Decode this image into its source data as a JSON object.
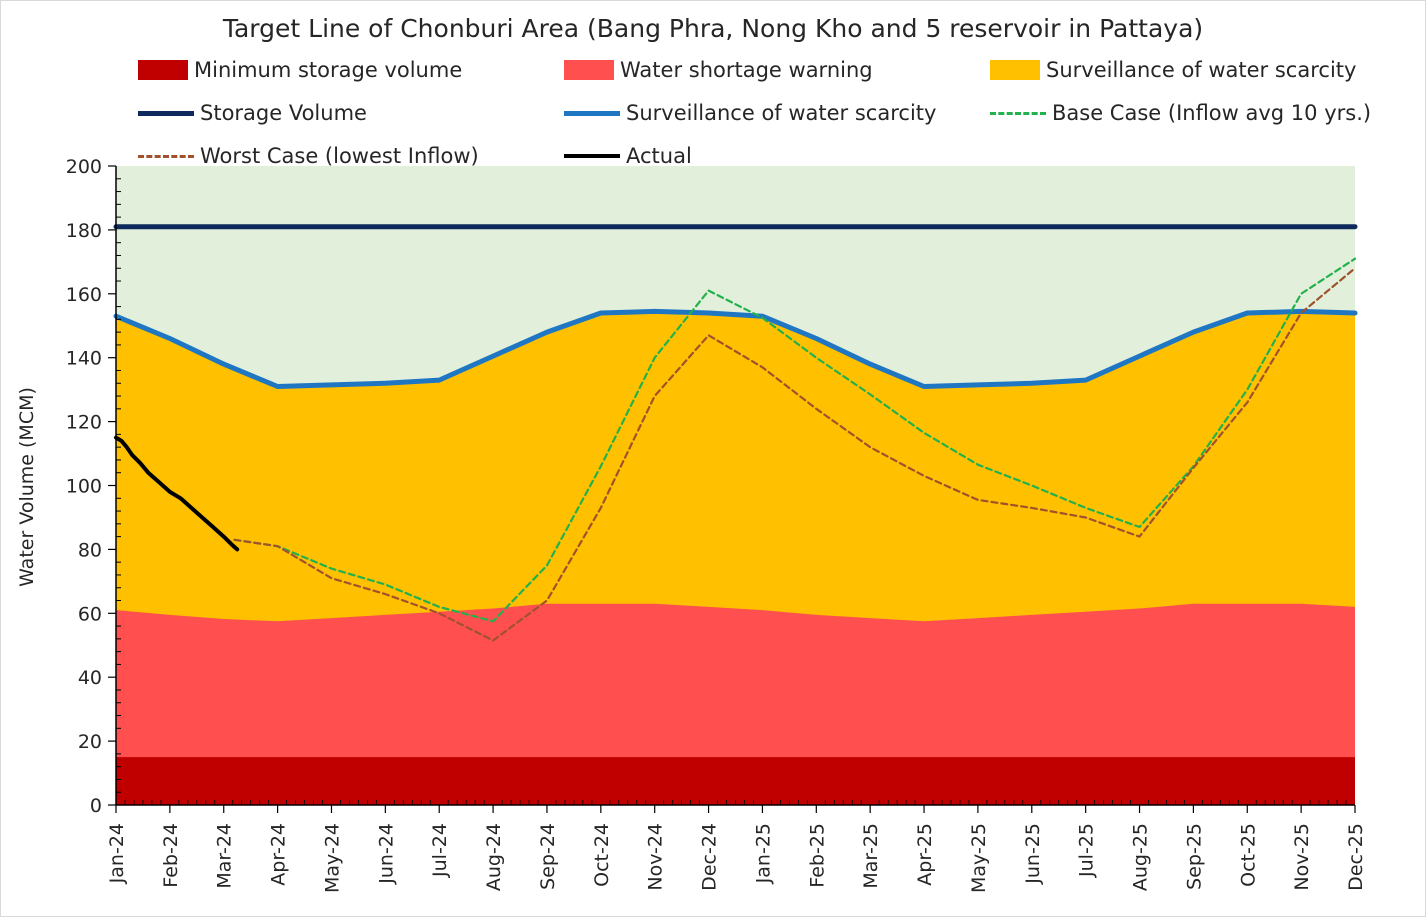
{
  "chart_data": {
    "type": "area",
    "title": "Target Line of Chonburi Area (Bang Phra, Nong Kho and 5 reservoir in Pattaya)",
    "xlabel": "",
    "ylabel": "Water Volume (MCM)",
    "ylim": [
      0,
      200
    ],
    "yticks": [
      0,
      20,
      40,
      60,
      80,
      100,
      120,
      140,
      160,
      180,
      200
    ],
    "categories": [
      "Jan-24",
      "Feb-24",
      "Mar-24",
      "Apr-24",
      "May-24",
      "Jun-24",
      "Jul-24",
      "Aug-24",
      "Sep-24",
      "Oct-24",
      "Nov-24",
      "Dec-24",
      "Jan-25",
      "Feb-25",
      "Mar-25",
      "Apr-25",
      "May-25",
      "Jun-25",
      "Jul-25",
      "Aug-25",
      "Sep-25",
      "Oct-25",
      "Nov-25",
      "Dec-25"
    ],
    "background_color": "#e2efda",
    "legend": [
      {
        "label": "Minimum storage volume",
        "kind": "box",
        "color": "#c00000"
      },
      {
        "label": "Water shortage warning",
        "kind": "box",
        "color": "#ff4f4f"
      },
      {
        "label": "Surveillance of water scarcity",
        "kind": "box",
        "color": "#ffc000"
      },
      {
        "label": "Storage Volume",
        "kind": "line",
        "color": "#0e2a5c"
      },
      {
        "label": "Surveillance of water scarcity",
        "kind": "line",
        "color": "#1f77c4"
      },
      {
        "label": "Base Case (Inflow avg 10 yrs.)",
        "kind": "dash",
        "color": "#22b14c"
      },
      {
        "label": "Worst Case (lowest Inflow)",
        "kind": "dash",
        "color": "#a0522d"
      },
      {
        "label": "Actual",
        "kind": "line",
        "color": "#000000"
      }
    ],
    "series": [
      {
        "name": "Minimum storage volume",
        "type": "area",
        "color": "#c00000",
        "values": [
          15,
          15,
          15,
          15,
          15,
          15,
          15,
          15,
          15,
          15,
          15,
          15,
          15,
          15,
          15,
          15,
          15,
          15,
          15,
          15,
          15,
          15,
          15,
          15
        ]
      },
      {
        "name": "Water shortage warning",
        "type": "area",
        "color": "#ff4f4f",
        "values": [
          61,
          59.5,
          58.2,
          57.5,
          58.5,
          59.5,
          60.5,
          61.5,
          63,
          63,
          63,
          62,
          61,
          59.5,
          58.5,
          57.5,
          58.5,
          59.5,
          60.5,
          61.5,
          63,
          63,
          63,
          62
        ]
      },
      {
        "name": "Surveillance of water scarcity",
        "type": "area+line",
        "color": "#ffc000",
        "line_color": "#1f77c4",
        "values": [
          153,
          146,
          138,
          131,
          131.5,
          132,
          133,
          140.5,
          148,
          154,
          154.5,
          154,
          153,
          146,
          138,
          131,
          131.5,
          132,
          133,
          140.5,
          148,
          154,
          154.5,
          154
        ]
      },
      {
        "name": "Storage Volume",
        "type": "line",
        "color": "#0e2a5c",
        "values": [
          181,
          181,
          181,
          181,
          181,
          181,
          181,
          181,
          181,
          181,
          181,
          181,
          181,
          181,
          181,
          181,
          181,
          181,
          181,
          181,
          181,
          181,
          181,
          181
        ]
      },
      {
        "name": "Base Case (Inflow avg 10 yrs.)",
        "type": "dash",
        "color": "#22b14c",
        "x": [
          2.2,
          3,
          4,
          5,
          6,
          7,
          8,
          9,
          10,
          11,
          12,
          13,
          14,
          15,
          16,
          17,
          18,
          19,
          20,
          21,
          22,
          23
        ],
        "values": [
          83,
          81,
          74,
          69,
          62,
          57.5,
          75,
          106,
          140,
          161,
          152.5,
          140,
          128.5,
          116.5,
          106.5,
          100,
          93,
          87,
          106,
          130,
          160,
          171
        ]
      },
      {
        "name": "Worst Case (lowest Inflow)",
        "type": "dash",
        "color": "#a0522d",
        "x": [
          2.2,
          3,
          4,
          5,
          6,
          7,
          8,
          9,
          10,
          11,
          12,
          13,
          14,
          15,
          16,
          17,
          18,
          19,
          20,
          21,
          22,
          23
        ],
        "values": [
          83,
          81,
          71,
          66,
          60,
          51.5,
          64,
          93,
          128,
          147,
          137,
          124,
          112,
          103,
          95.5,
          93,
          90,
          84,
          105.5,
          126,
          154,
          168
        ]
      },
      {
        "name": "Actual",
        "type": "line",
        "color": "#000000",
        "x": [
          0,
          0.1,
          0.2,
          0.3,
          0.45,
          0.6,
          0.8,
          1.0,
          1.2,
          1.4,
          1.6,
          1.8,
          2.0,
          2.15,
          2.25
        ],
        "values": [
          115,
          114,
          112,
          109.5,
          107,
          104,
          101,
          98,
          96,
          93,
          90,
          87,
          84,
          81.5,
          80
        ]
      }
    ]
  }
}
